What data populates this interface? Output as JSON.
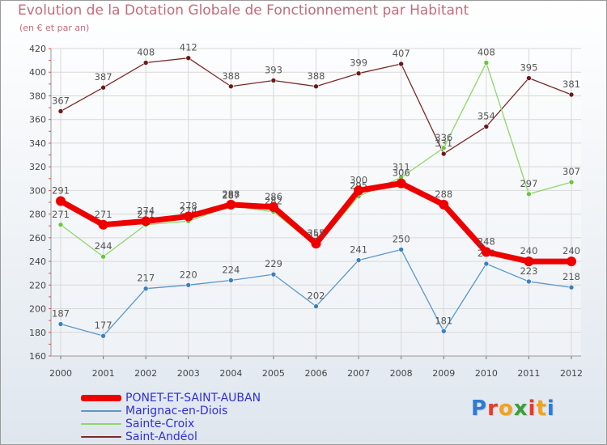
{
  "chart_data": {
    "type": "line",
    "title": "Evolution de la Dotation Globale de Fonctionnement par Habitant",
    "subtitle": "(en € et par an)",
    "x": [
      "2000",
      "2001",
      "2002",
      "2003",
      "2004",
      "2005",
      "2006",
      "2007",
      "2008",
      "2009",
      "2010",
      "2011",
      "2012"
    ],
    "ylim": [
      160,
      420
    ],
    "yticks": [
      160,
      180,
      200,
      220,
      240,
      260,
      280,
      300,
      320,
      340,
      360,
      380,
      400,
      420
    ],
    "grid": true,
    "series": [
      {
        "name": "Saint-Andéol",
        "color": "#7a2a2a",
        "dot": "#6b1a1a",
        "width": 1.3,
        "values": [
          367,
          387,
          408,
          412,
          388,
          393,
          388,
          399,
          407,
          331,
          354,
          395,
          381
        ],
        "labels": [
          "367",
          "387",
          "408",
          "412",
          "388",
          "393",
          "388",
          "399",
          "407",
          "331",
          "354",
          "395",
          "381"
        ]
      },
      {
        "name": "Sainte-Croix",
        "color": "#8ed66a",
        "dot": "#6cc43c",
        "width": 1.3,
        "values": [
          271,
          244,
          271,
          274,
          287,
          282,
          253,
          295,
          311,
          336,
          408,
          297,
          307
        ],
        "labels": [
          "271",
          "244",
          "271",
          "274",
          "287",
          "282",
          "253",
          "295",
          "311",
          "336",
          "408",
          "297",
          "307"
        ]
      },
      {
        "name": "Marignac-en-Diois",
        "color": "#5b97c9",
        "dot": "#3d7fbf",
        "width": 1.3,
        "values": [
          187,
          177,
          217,
          220,
          224,
          229,
          202,
          241,
          250,
          181,
          238,
          223,
          218
        ],
        "labels": [
          "187",
          "177",
          "217",
          "220",
          "224",
          "229",
          "202",
          "241",
          "250",
          "181",
          "238",
          "223",
          "218"
        ]
      },
      {
        "name": "PONET-ET-SAINT-AUBAN",
        "color": "#ee0000",
        "dot": "#ee0000",
        "width": 7,
        "values": [
          291,
          271,
          274,
          278,
          288,
          286,
          255,
          300,
          306,
          288,
          248,
          240,
          240
        ],
        "labels": [
          "291",
          "271",
          "274",
          "278",
          "288",
          "286",
          "255",
          "300",
          "306",
          "288",
          "248",
          "240",
          "240"
        ]
      }
    ],
    "legend": [
      "PONET-ET-SAINT-AUBAN",
      "Marignac-en-Diois",
      "Sainte-Croix",
      "Saint-Andéol"
    ],
    "legend_position": "bottom-left"
  },
  "logo": {
    "text": "Proxiti",
    "letters": [
      "P",
      "r",
      "o",
      "x",
      "i",
      "t",
      "i"
    ],
    "colors": [
      "#2e7bd4",
      "#e53b2b",
      "#f2a21b",
      "#3a9e3a",
      "#e53b2b",
      "#f2a21b",
      "#2e7bd4"
    ]
  }
}
